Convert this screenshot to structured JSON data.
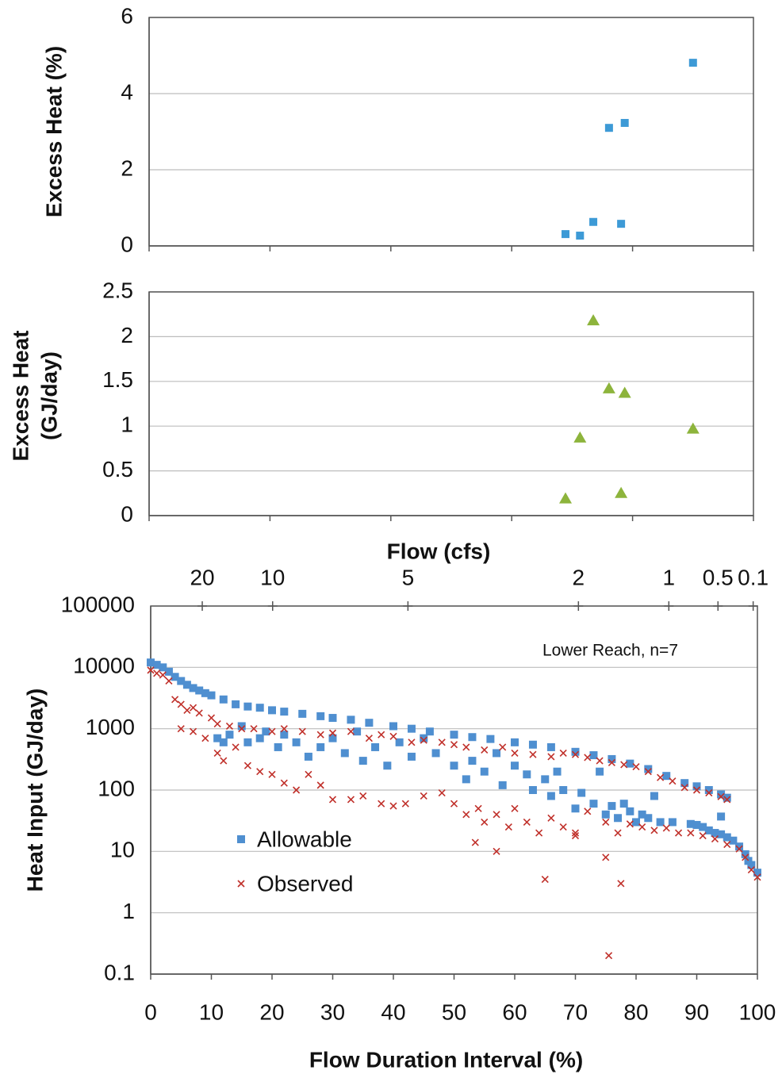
{
  "chart_data": [
    {
      "type": "scatter",
      "ylabel": "Excess Heat  (%)",
      "xlim": [
        0,
        100
      ],
      "xticks": [
        0,
        20,
        40,
        60,
        80,
        100
      ],
      "ylim": [
        0,
        6
      ],
      "yticks": [
        0,
        2,
        4,
        6
      ],
      "grid": true,
      "series": [
        {
          "color": "#3d9ad6",
          "marker": "square",
          "x": [
            68.9,
            71.3,
            73.5,
            76.1,
            78.1,
            78.7,
            90.0
          ],
          "values": [
            0.31,
            0.27,
            0.63,
            3.1,
            0.58,
            3.23,
            4.81
          ]
        }
      ]
    },
    {
      "type": "scatter",
      "ylabel": [
        "Excess Heat",
        "(GJ/day)"
      ],
      "xlim": [
        0,
        100
      ],
      "xticks": [
        0,
        20,
        40,
        60,
        80,
        100
      ],
      "ylim": [
        0,
        2.5
      ],
      "yticks": [
        0,
        0.5,
        1,
        1.5,
        2,
        2.5
      ],
      "grid": true,
      "series": [
        {
          "color": "#8db43c",
          "marker": "triangle",
          "x": [
            68.9,
            71.3,
            73.5,
            76.1,
            78.1,
            78.7,
            90.0
          ],
          "values": [
            0.19,
            0.87,
            2.18,
            1.42,
            0.25,
            1.37,
            0.97
          ]
        }
      ]
    },
    {
      "type": "scatter",
      "xlabel": "Flow Duration Interval (%)",
      "ylabel": "Heat Input (GJ/day)",
      "annotation": "Lower Reach, n=7",
      "log_y": true,
      "grid": true,
      "legend": "lower-left",
      "xlim": [
        0,
        100
      ],
      "xticks": [
        0,
        10,
        20,
        30,
        40,
        50,
        60,
        70,
        80,
        90,
        100
      ],
      "ylim": [
        0.1,
        100000
      ],
      "yticks": [
        0.1,
        1,
        10,
        100,
        1000,
        10000,
        100000
      ],
      "flow_axis": {
        "label": "Flow (cfs)",
        "ticks": [
          20,
          10,
          5,
          2,
          1,
          0.5,
          0.1
        ],
        "at_percent": [
          8.5,
          20.1,
          42.4,
          70.5,
          85.4,
          93.5,
          99.3
        ]
      },
      "series": [
        {
          "name": "Allowable",
          "color": "#4f8fd0",
          "marker": "square",
          "x": [
            0,
            1,
            2,
            3,
            4,
            5,
            6,
            7,
            8,
            9,
            10,
            12,
            14,
            16,
            18,
            20,
            22,
            25,
            28,
            30,
            33,
            36,
            40,
            43,
            46,
            50,
            53,
            56,
            60,
            63,
            66,
            70,
            73,
            76,
            79,
            82,
            85,
            88,
            90,
            92,
            94,
            95,
            89,
            90,
            91,
            92,
            93,
            94,
            95,
            96,
            97,
            98,
            98.5,
            99,
            100,
            11,
            12,
            13,
            15,
            16,
            18,
            19,
            21,
            22,
            24,
            26,
            28,
            30,
            32,
            34,
            35,
            37,
            39,
            41,
            43,
            45,
            47,
            50,
            52,
            53,
            55,
            57,
            58,
            60,
            62,
            63,
            65,
            66,
            67,
            68,
            70,
            71,
            73,
            74,
            75,
            76,
            77,
            78,
            79,
            80,
            81,
            82,
            83,
            84,
            86,
            94
          ],
          "values": [
            12000,
            11000,
            10000,
            8500,
            7000,
            6000,
            5200,
            4600,
            4200,
            3800,
            3500,
            3000,
            2500,
            2300,
            2200,
            2000,
            1900,
            1750,
            1600,
            1500,
            1400,
            1250,
            1100,
            1000,
            900,
            800,
            730,
            680,
            600,
            550,
            500,
            420,
            370,
            320,
            270,
            220,
            170,
            130,
            115,
            100,
            85,
            75,
            28,
            27,
            25,
            22,
            20,
            19,
            17,
            15,
            12,
            9,
            7,
            6,
            4.5,
            700,
            600,
            800,
            1100,
            600,
            700,
            900,
            500,
            800,
            600,
            350,
            500,
            700,
            400,
            900,
            300,
            500,
            250,
            600,
            350,
            700,
            400,
            250,
            150,
            300,
            200,
            400,
            120,
            250,
            180,
            100,
            150,
            80,
            200,
            100,
            50,
            90,
            60,
            200,
            40,
            55,
            35,
            60,
            45,
            30,
            40,
            35,
            80,
            30,
            30,
            37
          ]
        },
        {
          "name": "Observed",
          "color": "#c0302a",
          "marker": "x",
          "x": [
            0,
            1,
            2,
            3,
            4,
            5,
            6,
            7,
            8,
            10,
            11,
            13,
            15,
            17,
            20,
            22,
            25,
            28,
            30,
            33,
            36,
            38,
            40,
            43,
            45,
            48,
            50,
            52,
            55,
            58,
            60,
            63,
            66,
            68,
            70,
            72,
            74,
            76,
            78,
            80,
            82,
            84,
            86,
            88,
            90,
            92,
            94,
            95,
            5,
            7,
            9,
            11,
            12,
            14,
            16,
            18,
            20,
            22,
            24,
            26,
            28,
            30,
            33,
            35,
            38,
            40,
            42,
            45,
            48,
            50,
            52,
            54,
            55,
            57,
            59,
            60,
            62,
            64,
            66,
            68,
            70,
            72,
            75,
            77,
            79,
            81,
            83,
            85,
            87,
            89,
            91,
            93,
            95,
            97,
            98,
            99,
            100,
            53.5,
            57,
            65,
            70,
            75,
            75.5,
            77.5
          ],
          "values": [
            9000,
            8000,
            7500,
            6000,
            3000,
            2500,
            2000,
            2200,
            1800,
            1500,
            1200,
            1100,
            1000,
            1000,
            900,
            1000,
            900,
            800,
            850,
            900,
            700,
            800,
            750,
            600,
            650,
            600,
            550,
            500,
            450,
            500,
            400,
            380,
            350,
            400,
            380,
            340,
            300,
            280,
            260,
            240,
            200,
            160,
            140,
            110,
            100,
            90,
            78,
            70,
            1000,
            900,
            700,
            400,
            300,
            500,
            250,
            200,
            180,
            130,
            100,
            180,
            120,
            70,
            70,
            80,
            60,
            55,
            60,
            80,
            90,
            60,
            40,
            50,
            30,
            40,
            25,
            50,
            30,
            20,
            35,
            25,
            20,
            45,
            30,
            20,
            28,
            25,
            22,
            24,
            20,
            20,
            18,
            16,
            13,
            11,
            8,
            5,
            3.8,
            14,
            10,
            3.5,
            18,
            8,
            0.2,
            3
          ]
        }
      ]
    }
  ]
}
